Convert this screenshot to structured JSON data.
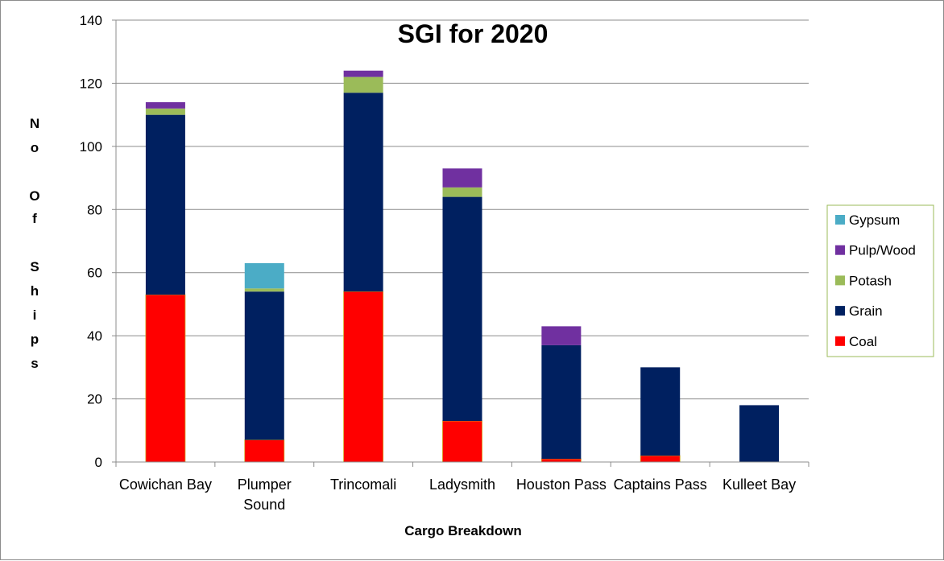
{
  "chart_data": {
    "type": "bar",
    "stacked": true,
    "title": "SGI for 2020",
    "xlabel": "Cargo Breakdown",
    "ylabel": "No Of Ships",
    "ylabel_letters": [
      "N",
      "o",
      "O",
      "f",
      "S",
      "h",
      "i",
      "p",
      "s"
    ],
    "ylim": [
      0,
      140
    ],
    "yticks": [
      0,
      20,
      40,
      60,
      80,
      100,
      120,
      140
    ],
    "grid": true,
    "legend_position": "right",
    "categories": [
      [
        "Cowichan Bay"
      ],
      [
        "Plumper",
        "Sound"
      ],
      [
        "Trincomali"
      ],
      [
        "Ladysmith"
      ],
      [
        "Houston Pass"
      ],
      [
        "Captains Pass"
      ],
      [
        "Kulleet Bay"
      ]
    ],
    "series": [
      {
        "name": "Coal",
        "color": "#ff0000",
        "values": [
          53,
          7,
          54,
          13,
          1,
          2,
          0
        ]
      },
      {
        "name": "Grain",
        "color": "#002060",
        "values": [
          57,
          47,
          63,
          71,
          36,
          28,
          18
        ]
      },
      {
        "name": "Potash",
        "color": "#9bbb59",
        "values": [
          2,
          1,
          5,
          3,
          0,
          0,
          0
        ]
      },
      {
        "name": "Pulp/Wood",
        "color": "#7030a0",
        "values": [
          2,
          0,
          2,
          6,
          6,
          0,
          0
        ]
      },
      {
        "name": "Gypsum",
        "color": "#4bacc6",
        "values": [
          0,
          8,
          0,
          0,
          0,
          0,
          0
        ]
      }
    ]
  }
}
